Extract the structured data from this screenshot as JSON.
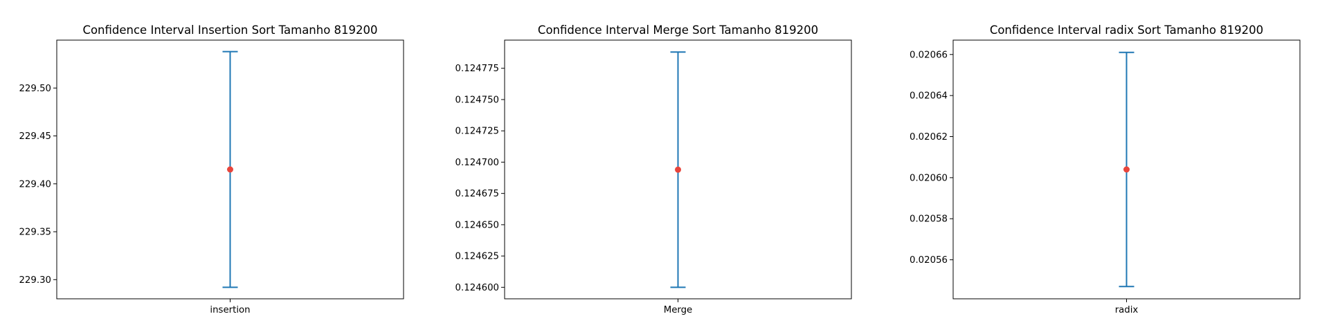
{
  "colors": {
    "errorbar": "#1f77b4",
    "mean_point": "#e8453c",
    "axes": "#000000",
    "background": "#ffffff"
  },
  "chart_data": [
    {
      "type": "scatter",
      "title": "Confidence Interval Insertion Sort Tamanho 819200",
      "categories": [
        "insertion"
      ],
      "mean": [
        229.415
      ],
      "ci_low": [
        229.292
      ],
      "ci_high": [
        229.538
      ],
      "yticks": [
        229.3,
        229.35,
        229.4,
        229.45,
        229.5
      ],
      "ytick_labels": [
        "229.30",
        "229.35",
        "229.40",
        "229.45",
        "229.50"
      ],
      "ylim": [
        229.28,
        229.55
      ],
      "xlabel": "",
      "ylabel": "",
      "grid": false,
      "legend": "none"
    },
    {
      "type": "scatter",
      "title": "Confidence Interval Merge Sort Tamanho 819200",
      "categories": [
        "Merge"
      ],
      "mean": [
        0.124694
      ],
      "ci_low": [
        0.1246
      ],
      "ci_high": [
        0.124788
      ],
      "yticks": [
        0.1246,
        0.124625,
        0.12465,
        0.124675,
        0.1247,
        0.124725,
        0.12475,
        0.124775
      ],
      "ytick_labels": [
        "0.124600",
        "0.124625",
        "0.124650",
        "0.124675",
        "0.124700",
        "0.124725",
        "0.124750",
        "0.124775"
      ],
      "ylim": [
        0.1245908,
        0.1247975
      ],
      "xlabel": "",
      "ylabel": "",
      "grid": false,
      "legend": "none"
    },
    {
      "type": "scatter",
      "title": "Confidence Interval radix Sort Tamanho 819200",
      "categories": [
        "radix"
      ],
      "mean": [
        0.020604
      ],
      "ci_low": [
        0.020547
      ],
      "ci_high": [
        0.020661
      ],
      "yticks": [
        0.02056,
        0.02058,
        0.0206,
        0.02062,
        0.02064,
        0.02066
      ],
      "ytick_labels": [
        "0.02056",
        "0.02058",
        "0.02060",
        "0.02062",
        "0.02064",
        "0.02066"
      ],
      "ylim": [
        0.020541,
        0.020667
      ],
      "xlabel": "",
      "ylabel": "",
      "grid": false,
      "legend": "none"
    }
  ]
}
